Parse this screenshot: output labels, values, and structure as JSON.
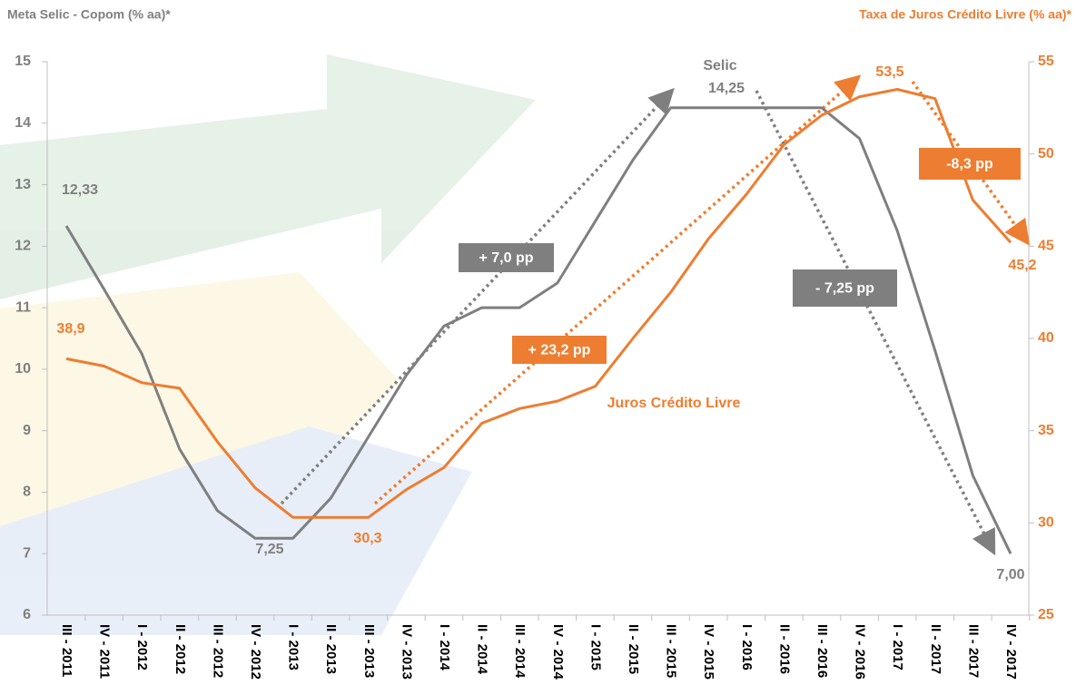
{
  "chart_data": {
    "type": "line",
    "title": "Meta Selic - Copom (% aa)*",
    "y2_title": "Taxa de Juros Crédito Livre  (% aa)*",
    "categories": [
      "III - 2011",
      "IV - 2011",
      "I - 2012",
      "II - 2012",
      "III - 2012",
      "IV - 2012",
      "I - 2013",
      "II - 2013",
      "III - 2013",
      "IV - 2013",
      "I - 2014",
      "II - 2014",
      "III - 2014",
      "IV - 2014",
      "I - 2015",
      "II - 2015",
      "III - 2015",
      "IV - 2015",
      "I - 2016",
      "II - 2016",
      "III - 2016",
      "IV - 2016",
      "I - 2017",
      "II - 2017",
      "III - 2017",
      "IV - 2017"
    ],
    "series": [
      {
        "name": "Selic",
        "color": "#7f7f7f",
        "axis": "y",
        "values": [
          12.33,
          11.3,
          10.25,
          8.7,
          7.7,
          7.25,
          7.25,
          7.9,
          8.9,
          9.9,
          10.7,
          11.0,
          11.0,
          11.4,
          12.4,
          13.4,
          14.25,
          14.25,
          14.25,
          14.25,
          14.25,
          13.75,
          12.25,
          10.3,
          8.27,
          7.0
        ]
      },
      {
        "name": "Juros Crédito Livre",
        "color": "#ed7d31",
        "axis": "y2",
        "values": [
          38.9,
          38.5,
          37.6,
          37.3,
          34.4,
          31.9,
          30.3,
          30.3,
          30.3,
          31.8,
          33.0,
          35.4,
          36.2,
          36.6,
          37.4,
          40.0,
          42.5,
          45.4,
          47.8,
          50.5,
          52.1,
          53.1,
          53.5,
          53.0,
          47.5,
          45.2
        ]
      }
    ],
    "ylim": [
      6,
      15
    ],
    "yticks": [
      6,
      7,
      8,
      9,
      10,
      11,
      12,
      13,
      14,
      15
    ],
    "y2lim": [
      25,
      55
    ],
    "y2ticks": [
      25,
      30,
      35,
      40,
      45,
      50,
      55
    ],
    "annotations": [
      "14,25",
      "12,33",
      "7,25",
      "7,00",
      "38,9",
      "30,3",
      "53,5",
      "45,2"
    ],
    "boxes": [
      "+ 7,0 pp",
      "+ 23,2 pp",
      "- 7,25 pp",
      "-8,3 pp"
    ]
  }
}
